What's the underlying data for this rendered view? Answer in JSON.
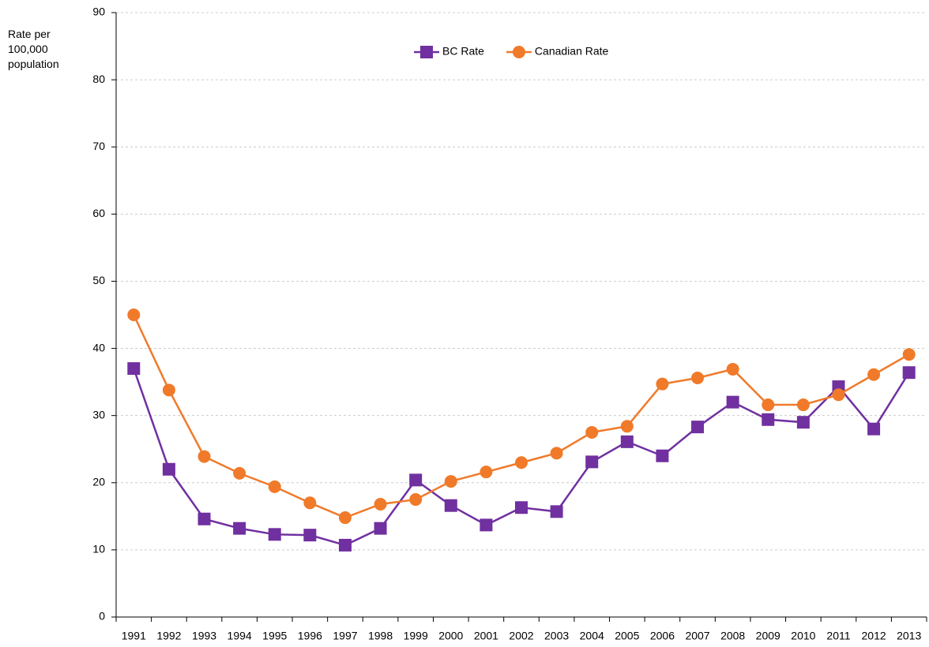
{
  "chart_data": {
    "type": "line",
    "y_label": "Rate per 100,000 population",
    "categories": [
      "1991",
      "1992",
      "1993",
      "1994",
      "1995",
      "1996",
      "1997",
      "1998",
      "1999",
      "2000",
      "2001",
      "2002",
      "2003",
      "2004",
      "2005",
      "2006",
      "2007",
      "2008",
      "2009",
      "2010",
      "2011",
      "2012",
      "2013"
    ],
    "series": [
      {
        "name": "BC Rate",
        "color": "#7030a0",
        "marker": "square",
        "values": [
          37.0,
          22.0,
          14.6,
          13.2,
          12.3,
          12.2,
          10.7,
          13.2,
          20.4,
          16.6,
          13.7,
          16.3,
          15.7,
          23.1,
          26.1,
          24.0,
          28.3,
          32.0,
          29.4,
          29.0,
          34.3,
          28.0,
          36.4
        ]
      },
      {
        "name": "Canadian Rate",
        "color": "#f07a2a",
        "marker": "circle",
        "values": [
          45.0,
          33.8,
          23.9,
          21.4,
          19.4,
          17.0,
          14.8,
          16.8,
          17.5,
          20.2,
          21.6,
          23.0,
          24.4,
          27.5,
          28.4,
          34.7,
          35.6,
          36.9,
          31.6,
          31.6,
          33.1,
          36.1,
          39.1
        ]
      }
    ],
    "ylim": [
      0,
      90
    ],
    "yticks": [
      0,
      10,
      20,
      30,
      40,
      50,
      60,
      70,
      80,
      90
    ],
    "grid": true,
    "legend": "top"
  }
}
